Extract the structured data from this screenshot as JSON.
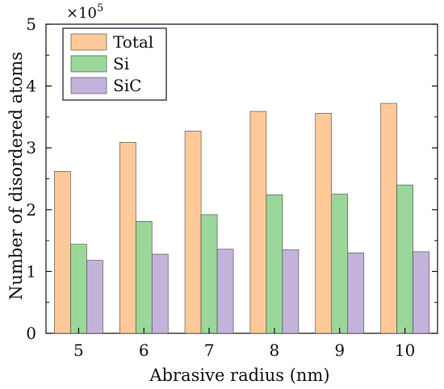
{
  "chart_data": {
    "type": "bar",
    "title": "",
    "xlabel": "Abrasive radius (nm)",
    "ylabel": "Number of disordered atoms",
    "y_multiplier": "×10",
    "y_multiplier_exponent": "5",
    "categories": [
      "5",
      "6",
      "7",
      "8",
      "9",
      "10"
    ],
    "ylim": [
      0,
      5
    ],
    "yticks": [
      "0",
      "1",
      "2",
      "3",
      "4",
      "5"
    ],
    "grid": false,
    "legend_position": "top-left",
    "series": [
      {
        "name": "Total",
        "color": "#FDC998",
        "values": [
          2.62,
          3.09,
          3.27,
          3.59,
          3.56,
          3.72
        ]
      },
      {
        "name": "Si",
        "color": "#9BD69A",
        "values": [
          1.44,
          1.81,
          1.92,
          2.24,
          2.25,
          2.4
        ]
      },
      {
        "name": "SiC",
        "color": "#C3B3DB",
        "values": [
          1.18,
          1.28,
          1.36,
          1.35,
          1.3,
          1.32
        ]
      }
    ]
  }
}
